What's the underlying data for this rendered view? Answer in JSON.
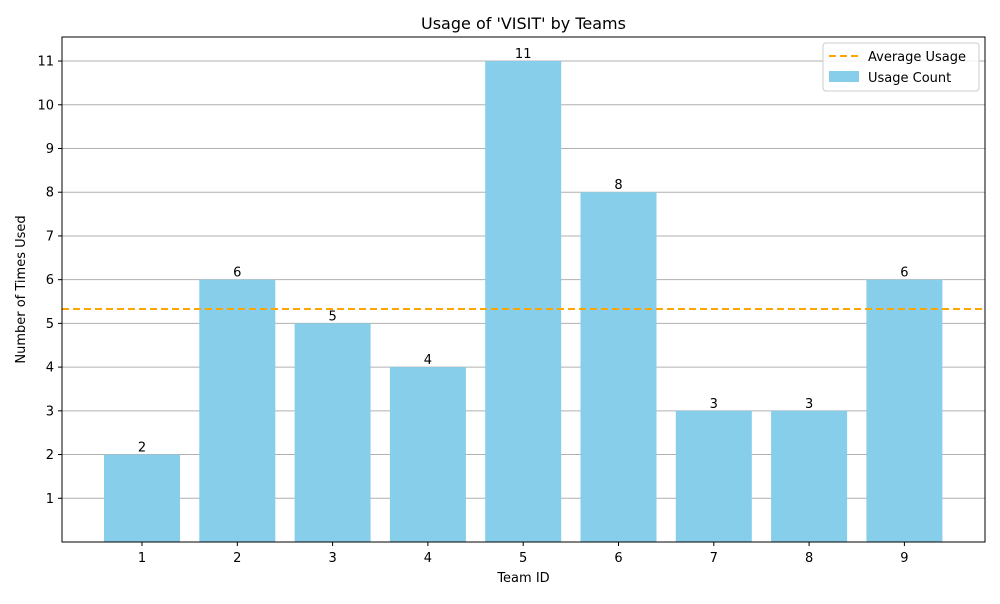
{
  "chart_data": {
    "type": "bar",
    "title": "Usage of 'VISIT' by Teams",
    "xlabel": "Team ID",
    "ylabel": "Number of Times Used",
    "categories": [
      "1",
      "2",
      "3",
      "4",
      "5",
      "6",
      "7",
      "8",
      "9"
    ],
    "series": [
      {
        "name": "Usage Count",
        "values": [
          2,
          6,
          5,
          4,
          11,
          8,
          3,
          3,
          6
        ],
        "color": "#87ceeb"
      }
    ],
    "reference_line": {
      "name": "Average Usage",
      "value": 5.33,
      "color": "#ffa500",
      "style": "dashed"
    },
    "y_ticks": [
      1,
      2,
      3,
      4,
      5,
      6,
      7,
      8,
      9,
      10,
      11
    ],
    "ylim": [
      0,
      11.55
    ],
    "grid": "y-axis horizontal lines",
    "legend_position": "top-right",
    "data_labels": true
  }
}
